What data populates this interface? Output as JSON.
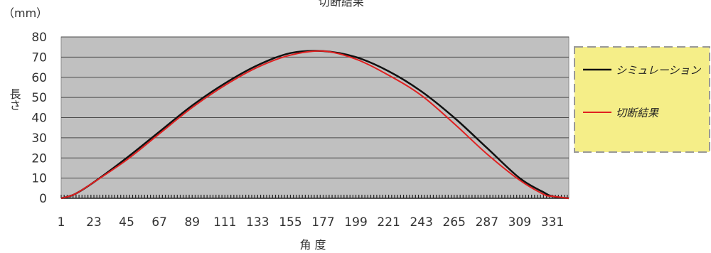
{
  "chart_data": {
    "type": "line",
    "title": "切断結果",
    "unit_label": "（mm）",
    "ylabel": "長さ",
    "xlabel": "角 度",
    "ylim": [
      0,
      80
    ],
    "y_ticks": [
      0,
      10,
      20,
      30,
      40,
      50,
      60,
      70,
      80
    ],
    "x_ticks": [
      1,
      23,
      45,
      67,
      89,
      111,
      133,
      155,
      177,
      199,
      221,
      243,
      265,
      287,
      309,
      331
    ],
    "xlim": [
      1,
      342
    ],
    "grid": true,
    "legend_position": "right",
    "colors": {
      "plot_bg": "#c0c0c0",
      "simulation": "#111111",
      "result": "#e02020",
      "legend_bg": "#f5ee88",
      "legend_border": "#999999"
    },
    "series": [
      {
        "name": "シミュレーション",
        "x": [
          1,
          10,
          23,
          45,
          67,
          89,
          111,
          133,
          155,
          177,
          199,
          221,
          243,
          265,
          287,
          309,
          325,
          331,
          342
        ],
        "y": [
          0,
          2,
          8,
          20,
          33,
          46,
          57,
          66,
          72,
          73,
          70,
          63,
          53,
          40,
          25,
          10,
          3,
          1,
          0
        ]
      },
      {
        "name": "切断結果",
        "x": [
          1,
          10,
          23,
          45,
          67,
          89,
          111,
          133,
          155,
          177,
          199,
          221,
          243,
          265,
          287,
          309,
          325,
          331,
          342
        ],
        "y": [
          0,
          2,
          8,
          19,
          32,
          45,
          56,
          65,
          71,
          73,
          69,
          61,
          51,
          37,
          22,
          9,
          2,
          1,
          0
        ]
      }
    ]
  }
}
